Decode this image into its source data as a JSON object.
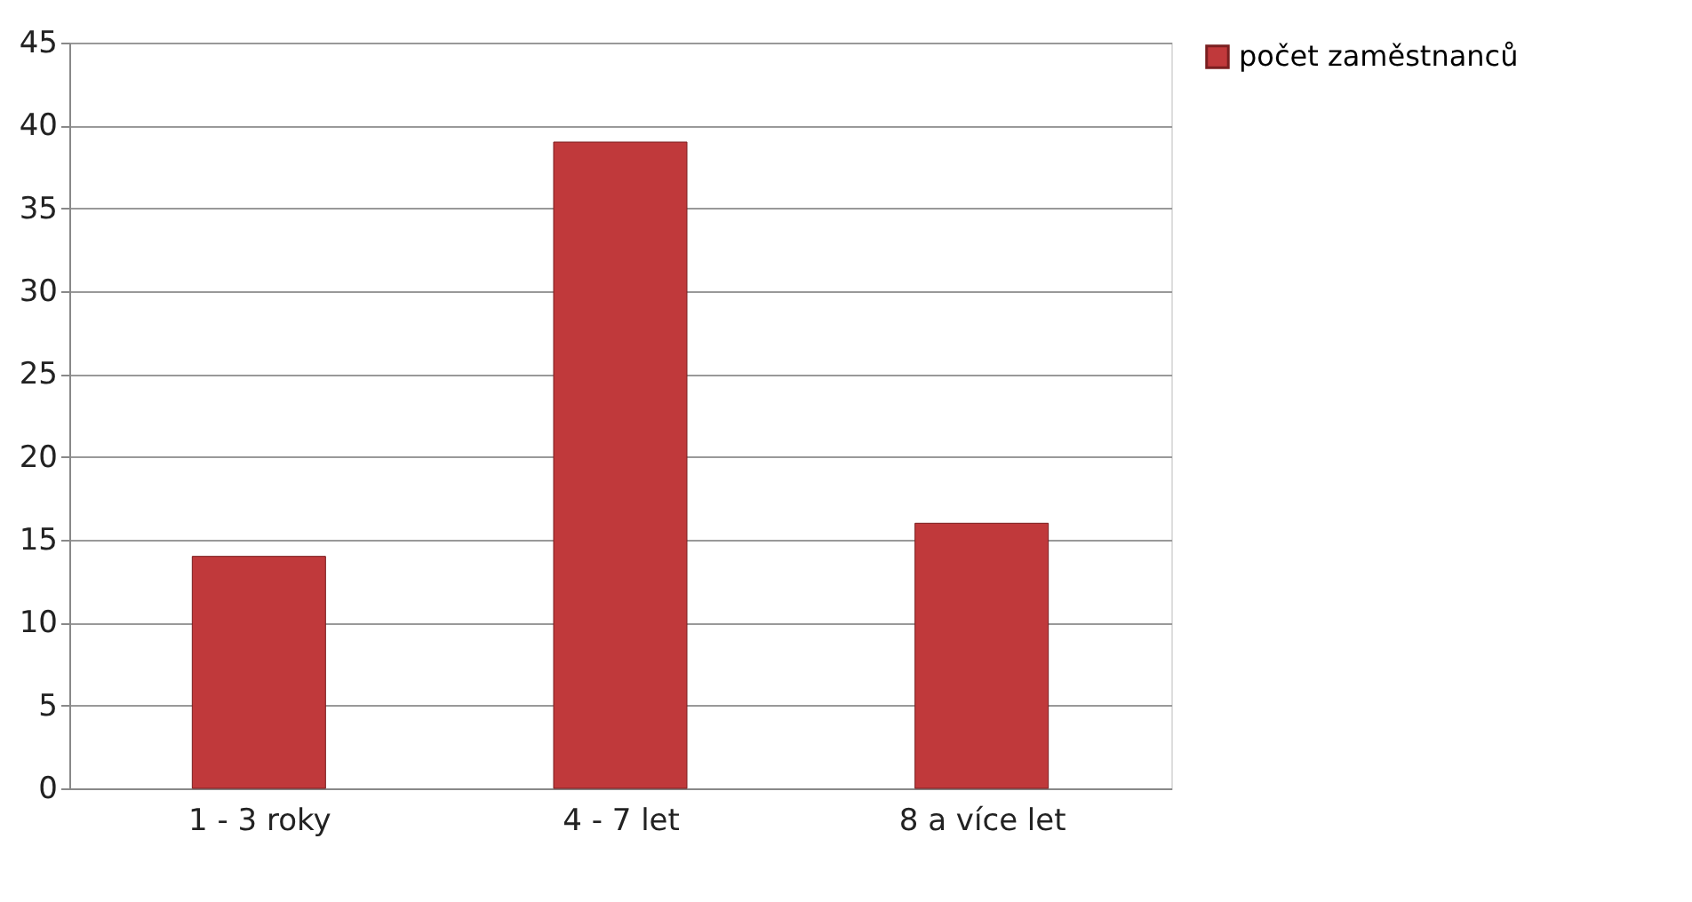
{
  "chart_data": {
    "type": "bar",
    "categories": [
      "1 - 3 roky",
      "4 - 7 let",
      "8 a více let"
    ],
    "series": [
      {
        "name": "počet zaměstnanců",
        "color": "#c0393b",
        "values": [
          14,
          39,
          16
        ]
      }
    ],
    "ylim": [
      0,
      45
    ],
    "yticks": [
      0,
      5,
      10,
      15,
      20,
      25,
      30,
      35,
      40,
      45
    ],
    "grid": "y",
    "legend": "right"
  }
}
